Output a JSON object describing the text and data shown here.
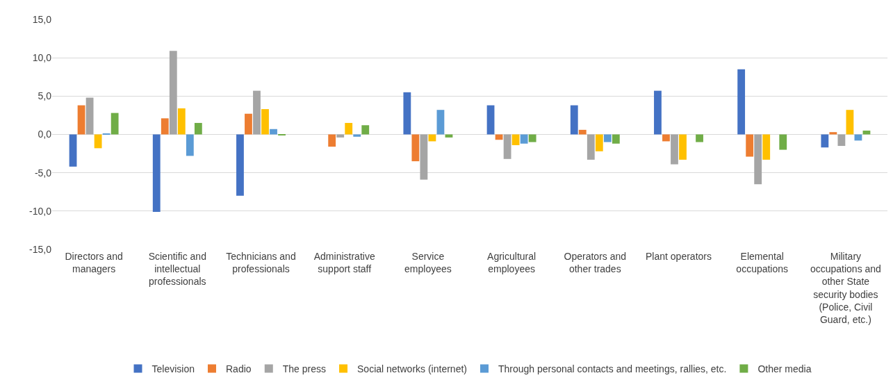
{
  "chart_data": {
    "type": "bar",
    "categories": [
      "Directors and managers",
      "Scientific and intellectual professionals",
      "Technicians and professionals",
      "Administrative support staff",
      "Service employees",
      "Agricultural employees",
      "Operators and other trades",
      "Plant operators",
      "Elemental occupations",
      "Military occupations and other State security bodies (Police, Civil Guard, etc.)"
    ],
    "series": [
      {
        "name": "Television",
        "color": "#4472c4",
        "values": [
          -4.2,
          -10.1,
          -8.0,
          0,
          5.5,
          3.8,
          3.8,
          5.7,
          8.5,
          -1.7
        ]
      },
      {
        "name": "Radio",
        "color": "#ed7d31",
        "values": [
          3.8,
          2.1,
          2.7,
          -1.6,
          -3.5,
          -0.7,
          0.6,
          -0.9,
          -2.9,
          0.3
        ]
      },
      {
        "name": "The press",
        "color": "#a5a5a5",
        "values": [
          4.8,
          10.9,
          5.7,
          -0.4,
          -5.9,
          -3.2,
          -3.3,
          -3.9,
          -6.5,
          -1.5
        ]
      },
      {
        "name": "Social networks (internet)",
        "color": "#ffc000",
        "values": [
          -1.8,
          3.4,
          3.3,
          1.5,
          -0.9,
          -1.4,
          -2.2,
          -3.3,
          -3.3,
          3.2
        ]
      },
      {
        "name": "Through personal contacts and meetings, rallies, etc.",
        "color": "#5b9bd5",
        "values": [
          0.1,
          -2.8,
          0.7,
          -0.3,
          3.2,
          -1.2,
          -1.0,
          0,
          0,
          -0.8
        ]
      },
      {
        "name": "Other media",
        "color": "#70ad47",
        "values": [
          2.8,
          1.5,
          -0.1,
          1.2,
          -0.4,
          -1.0,
          -1.2,
          -1.0,
          -2.0,
          0.5
        ]
      }
    ],
    "ylim": [
      -15,
      15
    ],
    "yticks": [
      {
        "value": -15,
        "label": "-15,0"
      },
      {
        "value": -10,
        "label": "-10,0"
      },
      {
        "value": -5,
        "label": "-5,0"
      },
      {
        "value": 0,
        "label": "0,0"
      },
      {
        "value": 5,
        "label": "5,0"
      },
      {
        "value": 10,
        "label": "10,0"
      },
      {
        "value": 15,
        "label": "15,0"
      }
    ],
    "grid": "y",
    "legend": "bottom"
  }
}
